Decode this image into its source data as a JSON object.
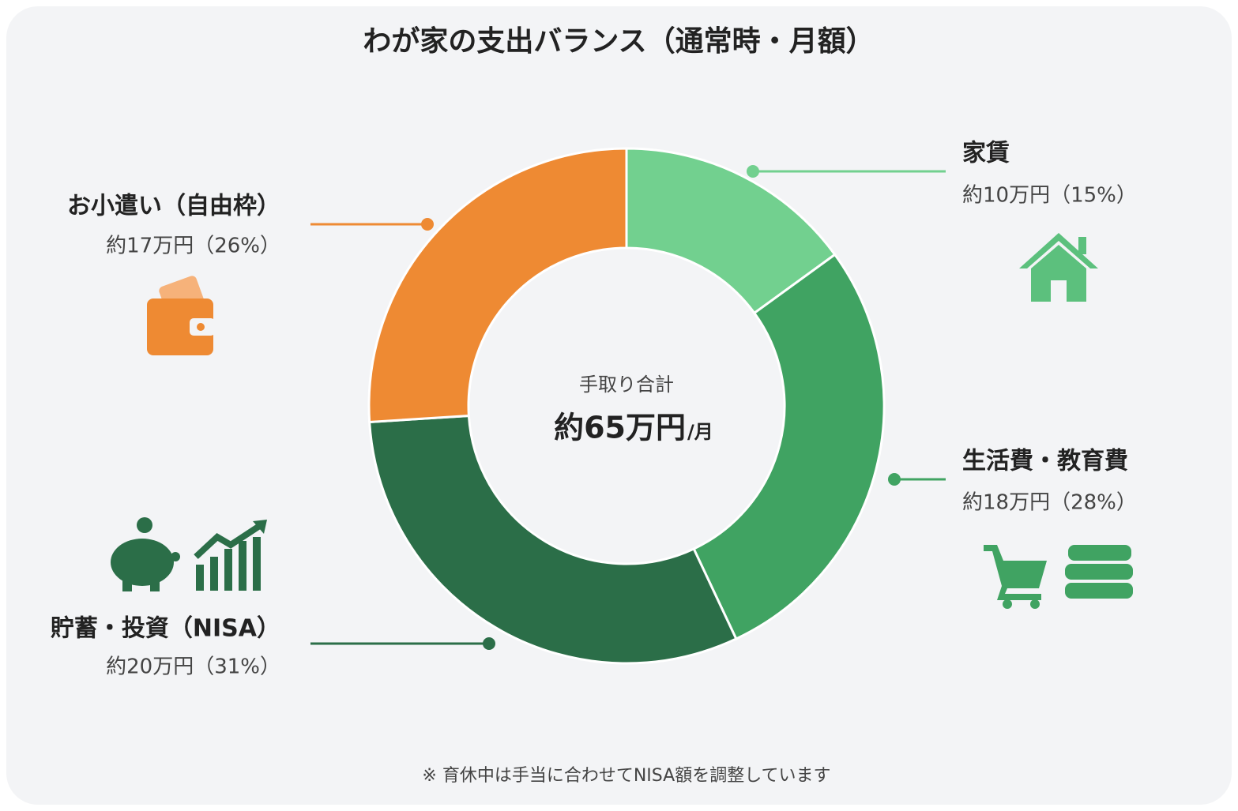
{
  "chart_data": {
    "type": "donut",
    "title": "わが家の支出バランス（通常時・月額）",
    "categories": [
      "家賃",
      "生活費・教育費",
      "貯蓄・投資（NISA）",
      "お小遣い（自由枠）"
    ],
    "values": [
      15,
      28,
      31,
      26
    ],
    "value_labels": [
      "約10万円（15%）",
      "約18万円（28%）",
      "約20万円（31%）",
      "約17万円（26%）"
    ],
    "colors": [
      "#72d08f",
      "#40a362",
      "#2b6e48",
      "#ee8a33"
    ],
    "center_caption": "手取り合計",
    "center_value": "約65万円",
    "center_unit": "/月",
    "footnote": "※ 育休中は手当に合わせてNISA額を調整しています"
  }
}
